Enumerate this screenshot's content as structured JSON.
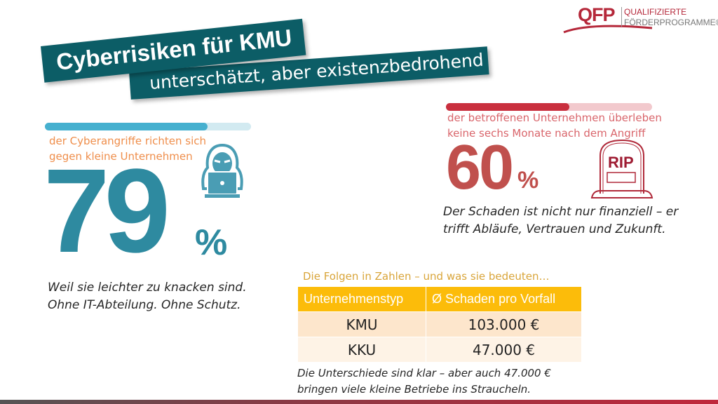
{
  "logo": {
    "text": "QFP",
    "line1": "QUALIFIZIERTE",
    "line2": "FÖRDERPROGRAMME®"
  },
  "title": "Cyberrisiken für KMU",
  "subtitle": "unterschätzt, aber existenzbedrohend",
  "left": {
    "progress_percent": 79,
    "caption": "der Cyberangriffe richten sich gegen kleine Unternehmen",
    "number": "79",
    "percent_sign": "%",
    "icon": "hacker-laptop-icon",
    "note_line1": "Weil sie leichter zu knacken sind.",
    "note_line2": "Ohne IT-Abteilung. Ohne Schutz.",
    "color": "#2e8aa0",
    "bar_color": "#46b0cf"
  },
  "right": {
    "progress_percent": 60,
    "caption_line1": "der betroffenen Unternehmen überleben",
    "caption_line2": "keine sechs Monate nach dem Angriff",
    "number": "60",
    "percent_sign": "%",
    "icon": "tombstone-icon",
    "icon_text": "RIP",
    "note_line1": "Der Schaden ist nicht nur finanziell – er",
    "note_line2": "trifft Abläufe, Vertrauen und Zukunft.",
    "color": "#c0504d",
    "bar_color": "#c92f3e"
  },
  "table": {
    "title": "Die Folgen in Zahlen – und was sie bedeuten…",
    "headers": [
      "Unternehmenstyp",
      "Ø Schaden pro Vorfall"
    ],
    "rows": [
      [
        "KMU",
        "103.000 €"
      ],
      [
        "KKU",
        "47.000 €"
      ]
    ],
    "note_line1": "Die Unterschiede sind klar – aber auch 47.000 €",
    "note_line2": "bringen viele kleine Betriebe ins Straucheln."
  }
}
